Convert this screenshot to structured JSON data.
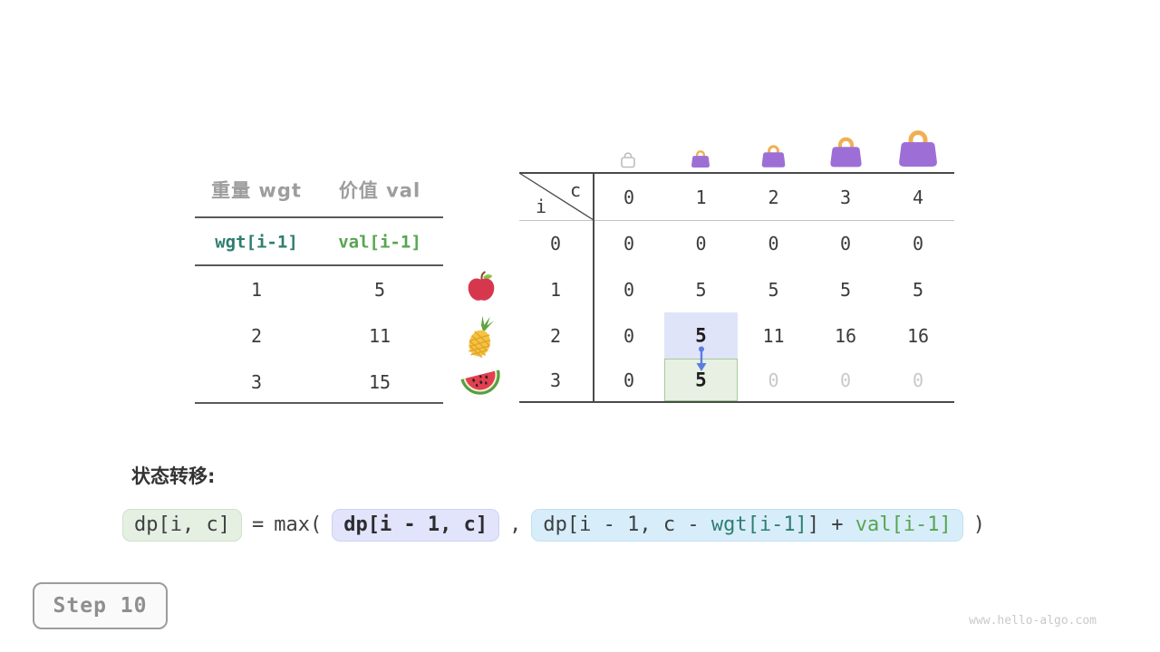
{
  "items_table": {
    "headers": {
      "weight": "重量 wgt",
      "value": "价值 val"
    },
    "formula_row": {
      "weight": "wgt[i-1]",
      "value": "val[i-1]"
    },
    "rows": [
      {
        "weight": "1",
        "value": "5",
        "fruit": "apple"
      },
      {
        "weight": "2",
        "value": "11",
        "fruit": "pineapple"
      },
      {
        "weight": "3",
        "value": "15",
        "fruit": "watermelon"
      }
    ]
  },
  "dp_table": {
    "corner": {
      "row_var": "i",
      "col_var": "c"
    },
    "col_headers": [
      "0",
      "1",
      "2",
      "3",
      "4"
    ],
    "row_headers": [
      "0",
      "1",
      "2",
      "3"
    ],
    "capacity_icons": [
      "bag-empty-outline",
      "bag-xs",
      "bag-sm",
      "bag-md",
      "bag-lg"
    ],
    "cells": [
      [
        "0",
        "0",
        "0",
        "0",
        "0"
      ],
      [
        "0",
        "5",
        "5",
        "5",
        "5"
      ],
      [
        "0",
        "5",
        "11",
        "16",
        "16"
      ],
      [
        "0",
        "5",
        "0",
        "0",
        "0"
      ]
    ],
    "compare_cell": {
      "row": 2,
      "col": 1
    },
    "current_cell": {
      "row": 3,
      "col": 1
    },
    "dim_cells": [
      [
        3,
        2
      ],
      [
        3,
        3
      ],
      [
        3,
        4
      ]
    ],
    "arrow": {
      "from": {
        "row": 2,
        "col": 1
      },
      "to": {
        "row": 3,
        "col": 1
      }
    }
  },
  "transition": {
    "label": "状态转移:",
    "lhs_chip": "dp[i, c]",
    "equals": "=",
    "max_open": "max(",
    "skip_chip": "dp[i - 1, c]",
    "comma": ",",
    "take_chip": {
      "pre": "dp[i - 1, c - ",
      "wgt": "wgt[i-1]",
      "mid": "] + ",
      "val": "val[i-1]"
    },
    "close_paren": ")"
  },
  "step_badge": "Step 10",
  "watermark": "www.hello-algo.com",
  "colors": {
    "wgt_accent": "#2e7e71",
    "val_accent": "#57a551",
    "compare_bg": "#e0e4f8",
    "current_bg": "#e7f0e3",
    "current_border": "#a3cb9a",
    "arrow": "#5b7ce2",
    "bag_body": "#9d6fd6",
    "bag_handle": "#f0b052",
    "dim_text": "#c9c9c9",
    "header_gray": "#9d9d9d"
  }
}
